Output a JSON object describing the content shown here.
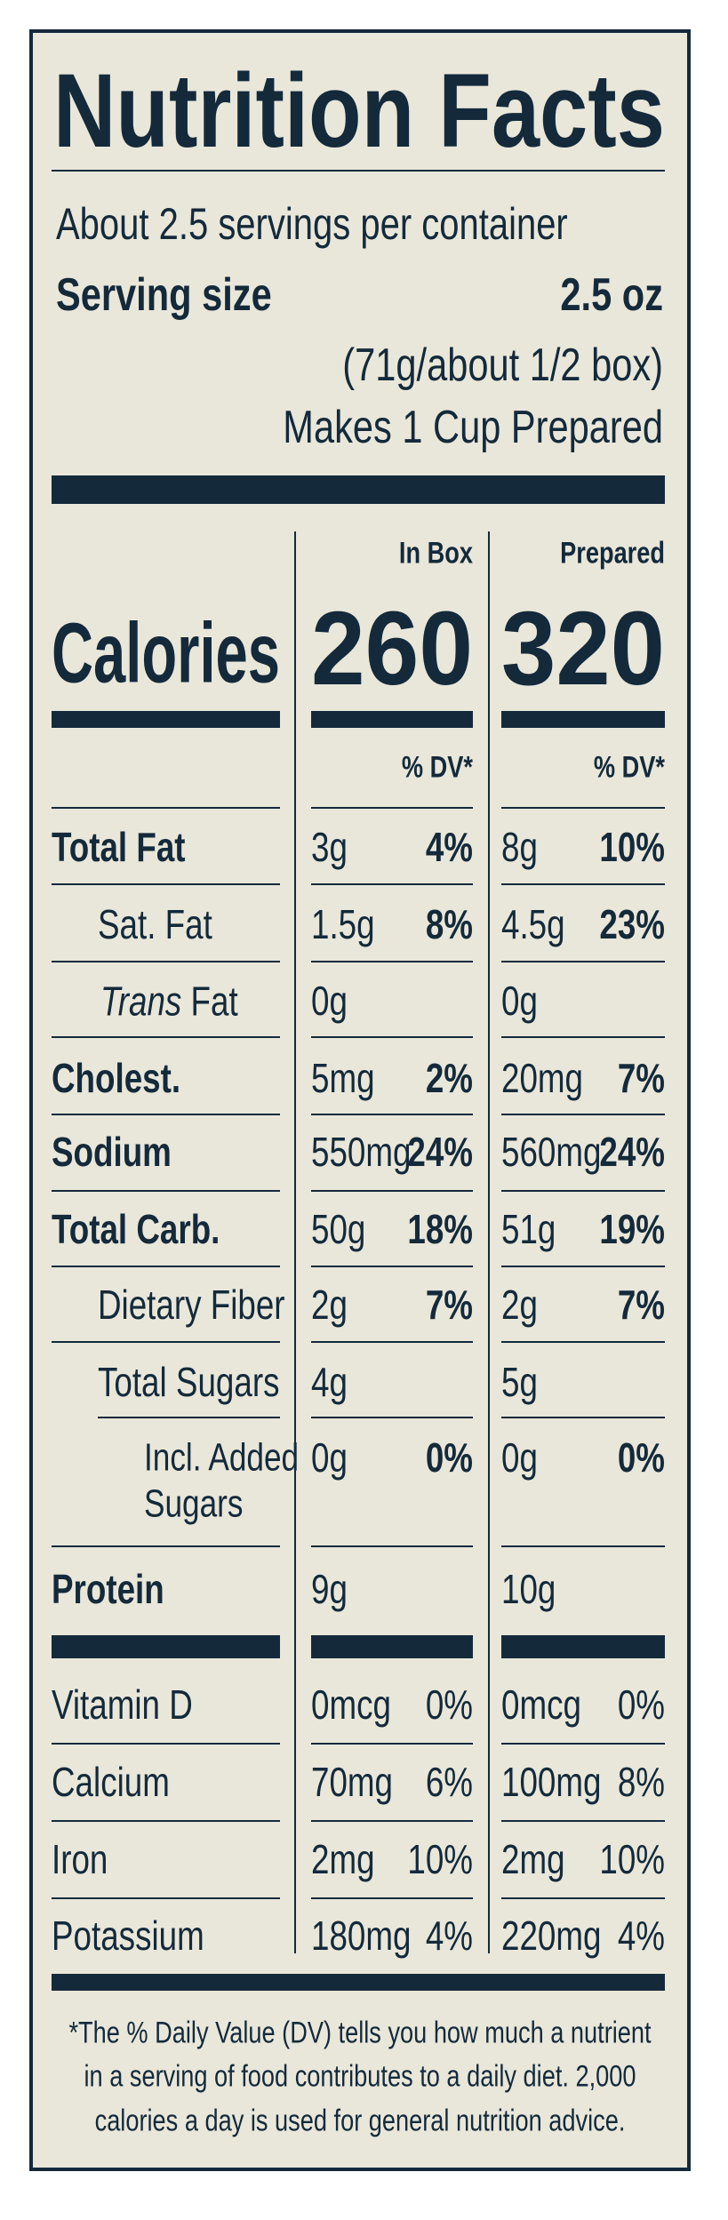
{
  "header": {
    "title": "Nutrition Facts",
    "servings": "About 2.5 servings per container",
    "serving_size_label": "Serving size",
    "serving_size": "2.5 oz",
    "serving_size_detail": "(71g/about 1/2 box)",
    "prepared_note": "Makes 1 Cup Prepared"
  },
  "columns": [
    "In Box",
    "Prepared"
  ],
  "calories": {
    "label": "Calories",
    "values": [
      "260",
      "320"
    ]
  },
  "dv_header": "% DV*",
  "nutrients": [
    {
      "name": "Total Fat",
      "values": [
        [
          "3g",
          "4%"
        ],
        [
          "8g",
          "10%"
        ]
      ]
    },
    {
      "name": "Sat. Fat",
      "values": [
        [
          "1.5g",
          "8%"
        ],
        [
          "4.5g",
          "23%"
        ]
      ]
    },
    {
      "name_italic": "Trans",
      "name": "Fat",
      "values": [
        [
          "0g"
        ],
        [
          "0g"
        ]
      ]
    },
    {
      "name": "Cholest.",
      "values": [
        [
          "5mg",
          "2%"
        ],
        [
          "20mg",
          "7%"
        ]
      ]
    },
    {
      "name": "Sodium",
      "values": [
        [
          "550mg",
          "24%"
        ],
        [
          "560mg",
          "24%"
        ]
      ]
    },
    {
      "name": "Total Carb.",
      "values": [
        [
          "50g",
          "18%"
        ],
        [
          "51g",
          "19%"
        ]
      ]
    },
    {
      "name": "Dietary Fiber",
      "values": [
        [
          "2g",
          "7%"
        ],
        [
          "2g",
          "7%"
        ]
      ]
    },
    {
      "name": "Total Sugars",
      "values": [
        [
          "4g"
        ],
        [
          "5g"
        ]
      ]
    },
    {
      "name": [
        "Incl. Added",
        "Sugars"
      ],
      "values": [
        [
          "0g",
          "0%"
        ],
        [
          "0g",
          "0%"
        ]
      ]
    },
    {
      "name": "Protein",
      "values": [
        [
          "9g"
        ],
        [
          "10g"
        ]
      ]
    }
  ],
  "vitamins": [
    {
      "name": "Vitamin D",
      "values": [
        [
          "0mcg",
          "0%"
        ],
        [
          "0mcg",
          "0%"
        ]
      ]
    },
    {
      "name": "Calcium",
      "values": [
        [
          "70mg",
          "6%"
        ],
        [
          "100mg",
          "8%"
        ]
      ]
    },
    {
      "name": "Iron",
      "values": [
        [
          "2mg",
          "10%"
        ],
        [
          "2mg",
          "10%"
        ]
      ]
    },
    {
      "name": "Potassium",
      "values": [
        [
          "180mg",
          "4%"
        ],
        [
          "220mg",
          "4%"
        ]
      ]
    }
  ],
  "footnote": [
    "*The % Daily Value (DV) tells you how much a nutrient",
    "in a serving of food contributes to a daily diet. 2,000",
    "calories a day is used for general nutrition advice."
  ]
}
